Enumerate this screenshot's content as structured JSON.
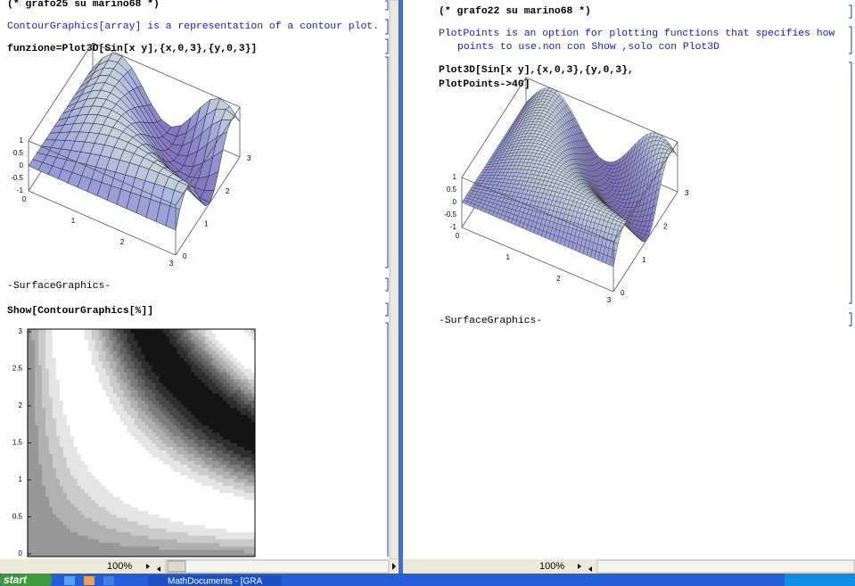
{
  "left_pane": {
    "title_comment": "(* grafo25 su marino68 *)",
    "text_cell": "ContourGraphics[array] is a representation of a contour plot.",
    "input_1": "funzione=Plot3D[Sin[x y],{x,0,3},{y,0,3}]",
    "plot3d": {
      "z_ticks": [
        "1",
        "0.5",
        "0",
        "-0.5",
        "-1"
      ],
      "x_ticks": [
        "0",
        "1",
        "2",
        "3"
      ],
      "y_ticks": [
        "0",
        "1",
        "2",
        "3"
      ]
    },
    "output_1": "-SurfaceGraphics-",
    "input_2": "Show[ContourGraphics[%]]",
    "contour": {
      "y_ticks": [
        "3",
        "2.5",
        "2",
        "1.5",
        "1",
        "0.5",
        "0"
      ]
    },
    "zoom": "100%"
  },
  "right_pane": {
    "title_comment": "(* grafo22 su marino68 *)",
    "text_cell": [
      "PlotPoints is an option for plotting functions that specifies how",
      "points to use.non con Show ,solo con Plot3D"
    ],
    "input_1": [
      "Plot3D[Sin[x y],{x,0,3},{y,0,3},",
      "PlotPoints->40]"
    ],
    "plot3d": {
      "z_ticks": [
        "1",
        "0.5",
        "0",
        "-0.5",
        "-1"
      ],
      "x_ticks": [
        "0",
        "1",
        "2",
        "3"
      ],
      "y_ticks": [
        "0",
        "1",
        "2",
        "3"
      ]
    },
    "output_1": "-SurfaceGraphics-",
    "zoom": "100%"
  },
  "taskbar": {
    "start": "start",
    "window": "MathDocuments - [GRA"
  }
}
